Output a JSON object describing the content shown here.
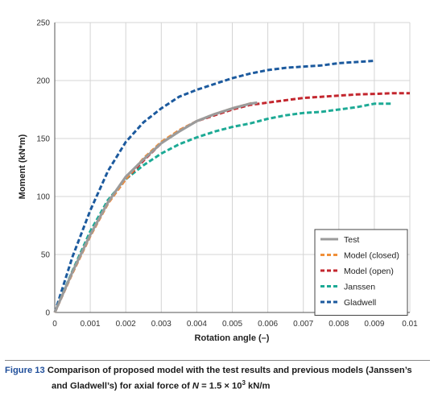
{
  "colors": {
    "test": "#9b9b9b",
    "model_closed": "#f0903a",
    "model_open": "#c3262e",
    "janssen": "#1daa95",
    "gladwell": "#1c5a9e",
    "caption_label": "#1f4e9a",
    "grid": "#d4d4d4"
  },
  "chart_data": {
    "type": "line",
    "xlabel": "Rotation angle (–)",
    "ylabel": "Moment (kN*m)",
    "xlim": [
      0,
      0.01
    ],
    "ylim": [
      0,
      250
    ],
    "x_ticks": [
      "0",
      "0.001",
      "0.002",
      "0.003",
      "0.004",
      "0.005",
      "0.006",
      "0.007",
      "0.008",
      "0.009",
      "0.01"
    ],
    "y_ticks": [
      "0",
      "50",
      "100",
      "150",
      "200",
      "250"
    ],
    "grid": true,
    "legend_position": "bottom-right",
    "series": [
      {
        "name": "Test",
        "color": "#9b9b9b",
        "dash": "solid",
        "points": [
          [
            0,
            0
          ],
          [
            0.0005,
            35
          ],
          [
            0.001,
            67
          ],
          [
            0.0015,
            95
          ],
          [
            0.002,
            117
          ],
          [
            0.0025,
            132
          ],
          [
            0.003,
            146
          ],
          [
            0.0035,
            156
          ],
          [
            0.004,
            165
          ],
          [
            0.0045,
            171
          ],
          [
            0.005,
            176
          ],
          [
            0.0055,
            180
          ],
          [
            0.0057,
            181
          ]
        ]
      },
      {
        "name": "Model (closed)",
        "color": "#f0903a",
        "dash": "dashed",
        "points": [
          [
            0,
            0
          ],
          [
            0.0005,
            34
          ],
          [
            0.001,
            66
          ],
          [
            0.0015,
            94
          ],
          [
            0.002,
            115
          ],
          [
            0.0025,
            133
          ],
          [
            0.003,
            147
          ],
          [
            0.0035,
            157
          ],
          [
            0.004,
            165
          ],
          [
            0.0045,
            171
          ],
          [
            0.005,
            176
          ],
          [
            0.0056,
            181
          ]
        ]
      },
      {
        "name": "Model (open)",
        "color": "#c3262e",
        "dash": "dashed",
        "points": [
          [
            0,
            0
          ],
          [
            0.0005,
            34
          ],
          [
            0.001,
            66
          ],
          [
            0.0015,
            94
          ],
          [
            0.002,
            115
          ],
          [
            0.0025,
            131
          ],
          [
            0.003,
            146
          ],
          [
            0.0035,
            157
          ],
          [
            0.004,
            165
          ],
          [
            0.0045,
            170
          ],
          [
            0.005,
            175
          ],
          [
            0.0055,
            179
          ],
          [
            0.006,
            181
          ],
          [
            0.0065,
            183
          ],
          [
            0.007,
            185
          ],
          [
            0.0075,
            186
          ],
          [
            0.008,
            187
          ],
          [
            0.0085,
            188
          ],
          [
            0.009,
            188.5
          ],
          [
            0.0095,
            189
          ],
          [
            0.01,
            189
          ]
        ]
      },
      {
        "name": "Janssen",
        "color": "#1daa95",
        "dash": "dashed",
        "points": [
          [
            0,
            0
          ],
          [
            0.0005,
            36
          ],
          [
            0.001,
            70
          ],
          [
            0.0015,
            97
          ],
          [
            0.002,
            115
          ],
          [
            0.0025,
            127
          ],
          [
            0.003,
            137
          ],
          [
            0.0035,
            145
          ],
          [
            0.004,
            151
          ],
          [
            0.0045,
            156
          ],
          [
            0.005,
            160
          ],
          [
            0.0055,
            163
          ],
          [
            0.006,
            167
          ],
          [
            0.0065,
            170
          ],
          [
            0.007,
            172
          ],
          [
            0.0075,
            173
          ],
          [
            0.008,
            175
          ],
          [
            0.0085,
            177
          ],
          [
            0.009,
            180
          ],
          [
            0.0095,
            180
          ]
        ]
      },
      {
        "name": "Gladwell",
        "color": "#1c5a9e",
        "dash": "dashed",
        "points": [
          [
            0,
            0
          ],
          [
            0.0005,
            48
          ],
          [
            0.001,
            88
          ],
          [
            0.0015,
            122
          ],
          [
            0.002,
            147
          ],
          [
            0.0025,
            164
          ],
          [
            0.003,
            176
          ],
          [
            0.0035,
            186
          ],
          [
            0.004,
            192
          ],
          [
            0.0045,
            197
          ],
          [
            0.005,
            202
          ],
          [
            0.0055,
            206
          ],
          [
            0.006,
            209
          ],
          [
            0.0065,
            211
          ],
          [
            0.007,
            212
          ],
          [
            0.0075,
            213
          ],
          [
            0.008,
            215
          ],
          [
            0.0085,
            216
          ],
          [
            0.009,
            217
          ]
        ]
      }
    ]
  },
  "caption": {
    "label": "Figure 13",
    "line1": "Comparison of proposed model with the test results and previous models (Janssen’s",
    "line2_pre": "and Gladwell’s) for axial force of ",
    "line2_var": "N",
    "line2_eq": " = 1.5 × 10",
    "line2_sup": "3",
    "line2_post": " kN/m"
  }
}
